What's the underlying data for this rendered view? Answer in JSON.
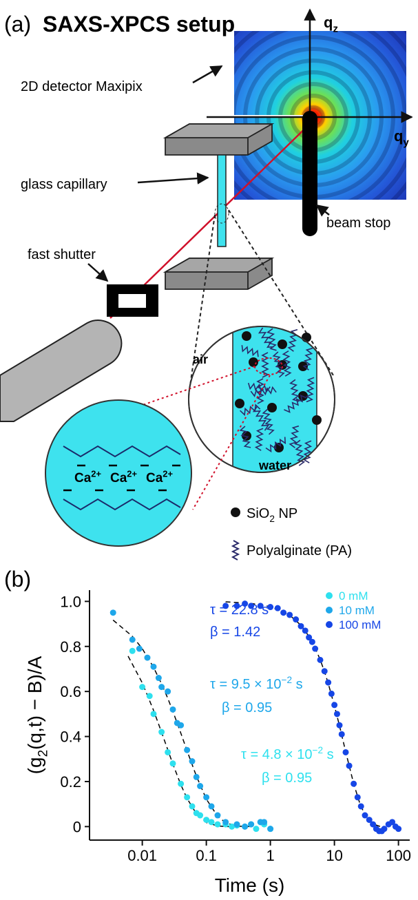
{
  "panel_a": {
    "label": "(a)",
    "title": "SAXS-XPCS setup",
    "detector": "2D detector Maxipix",
    "qz": {
      "base": "q",
      "sub": "z"
    },
    "qy": {
      "base": "q",
      "sub": "y"
    },
    "capillary": "glass capillary",
    "shutter": "fast shutter",
    "beam_stop": "beam stop",
    "air": "air",
    "water": "water",
    "ion": {
      "base": "Ca",
      "sup": "2+"
    },
    "legend": [
      {
        "base": "SiO",
        "sub": "2",
        "rest": " NP"
      },
      {
        "base": "Polyalginate (PA)"
      }
    ]
  },
  "chart_data": {
    "type": "scatter",
    "panel_label": "(b)",
    "xlabel": "Time (s)",
    "ylabel": {
      "base": "(g",
      "sub": "2",
      "rest": "(q,t) − B)/A"
    },
    "xscale": "log",
    "xlim": [
      0.0015,
      150
    ],
    "ylim": [
      -0.06,
      1.05
    ],
    "xticks": [
      0.01,
      0.1,
      1,
      10,
      100
    ],
    "yticks": [
      0,
      0.2,
      0.4,
      0.6,
      0.8,
      {
        "value": 1,
        "label": "1.0"
      }
    ],
    "legend": "upper right",
    "series": [
      {
        "name": "0 mM",
        "color": "#2ee0ee",
        "x": [
          0.007,
          0.01,
          0.013,
          0.015,
          0.02,
          0.025,
          0.03,
          0.04,
          0.05,
          0.06,
          0.07,
          0.08,
          0.1,
          0.12,
          0.15,
          0.2,
          0.25,
          0.3,
          0.4,
          0.5,
          0.6,
          0.7,
          0.8,
          1
        ],
        "values": [
          0.78,
          0.62,
          0.58,
          0.5,
          0.42,
          0.33,
          0.28,
          0.19,
          0.13,
          0.09,
          0.06,
          0.05,
          0.03,
          0.02,
          0.01,
          0.01,
          0,
          0.005,
          0,
          0.01,
          -0.01,
          0.02,
          0.01,
          -0.01
        ]
      },
      {
        "name": "10 mM",
        "color": "#1ea7ea",
        "x": [
          0.0035,
          0.007,
          0.009,
          0.012,
          0.015,
          0.018,
          0.02,
          0.025,
          0.03,
          0.035,
          0.04,
          0.05,
          0.06,
          0.07,
          0.08,
          0.1,
          0.12,
          0.15,
          0.2,
          0.3,
          0.4,
          0.5,
          0.7,
          0.8,
          1
        ],
        "values": [
          0.95,
          0.83,
          0.79,
          0.75,
          0.71,
          0.66,
          0.62,
          0.6,
          0.52,
          0.46,
          0.45,
          0.34,
          0.29,
          0.22,
          0.18,
          0.13,
          0.09,
          0.05,
          0.02,
          0.01,
          0,
          0.01,
          0.02,
          0.02,
          -0.01
        ]
      },
      {
        "name": "100 mM",
        "color": "#1646e6",
        "x": [
          0.2,
          0.3,
          0.4,
          0.5,
          0.7,
          1,
          1.3,
          1.6,
          2,
          2.5,
          3,
          3.5,
          4,
          4.5,
          5,
          6,
          7,
          8,
          9,
          10,
          11,
          12,
          13,
          15,
          17,
          20,
          23,
          26,
          30,
          35,
          40,
          45,
          50,
          55,
          60,
          70,
          80,
          90,
          100
        ],
        "values": [
          0.98,
          0.98,
          0.99,
          0.98,
          0.98,
          0.975,
          0.97,
          0.95,
          0.94,
          0.92,
          0.89,
          0.87,
          0.84,
          0.82,
          0.79,
          0.74,
          0.69,
          0.64,
          0.59,
          0.54,
          0.5,
          0.45,
          0.41,
          0.33,
          0.27,
          0.19,
          0.13,
          0.09,
          0.05,
          0.03,
          0.01,
          -0.01,
          -0.02,
          -0.02,
          -0.01,
          0.01,
          0.02,
          0,
          -0.01
        ]
      }
    ],
    "fits": [
      {
        "style": "dashed",
        "color": "#000000",
        "x": [
          0.006,
          0.01,
          0.015,
          0.02,
          0.03,
          0.04,
          0.05,
          0.07,
          0.1,
          0.15,
          0.2,
          0.3,
          0.5
        ],
        "values": [
          0.757,
          0.638,
          0.516,
          0.419,
          0.278,
          0.186,
          0.125,
          0.057,
          0.018,
          0.003,
          0,
          0,
          0
        ]
      },
      {
        "style": "dashed",
        "color": "#000000",
        "x": [
          0.0035,
          0.007,
          0.01,
          0.015,
          0.02,
          0.025,
          0.03,
          0.04,
          0.05,
          0.07,
          0.1,
          0.15,
          0.2,
          0.3,
          0.5
        ],
        "values": [
          0.917,
          0.845,
          0.79,
          0.707,
          0.634,
          0.57,
          0.512,
          0.415,
          0.337,
          0.224,
          0.122,
          0.046,
          0.017,
          0.002,
          0
        ]
      },
      {
        "style": "dashed",
        "color": "#000000",
        "x": [
          0.2,
          0.5,
          1,
          2,
          3,
          4,
          5,
          6,
          7,
          8,
          10,
          12,
          15,
          20,
          25,
          30,
          40,
          50,
          60
        ],
        "values": [
          0.998,
          0.991,
          0.977,
          0.939,
          0.894,
          0.845,
          0.793,
          0.741,
          0.688,
          0.636,
          0.537,
          0.448,
          0.332,
          0.19,
          0.102,
          0.052,
          0.012,
          0.002,
          0
        ]
      }
    ],
    "annotations": [
      {
        "color": "#1646e6",
        "lines": [
          {
            "base": "τ = 22.8 s"
          },
          {
            "base": "β = 1.42"
          }
        ]
      },
      {
        "color": "#1ea7ea",
        "lines": [
          {
            "base": "τ = 9.5 × 10",
            "sup": "−2",
            "rest": " s"
          },
          {
            "base": "β = 0.95"
          }
        ]
      },
      {
        "color": "#2ee0ee",
        "lines": [
          {
            "base": "τ = 4.8 × 10",
            "sup": "−2",
            "rest": " s"
          },
          {
            "base": "β = 0.95"
          }
        ]
      }
    ]
  }
}
